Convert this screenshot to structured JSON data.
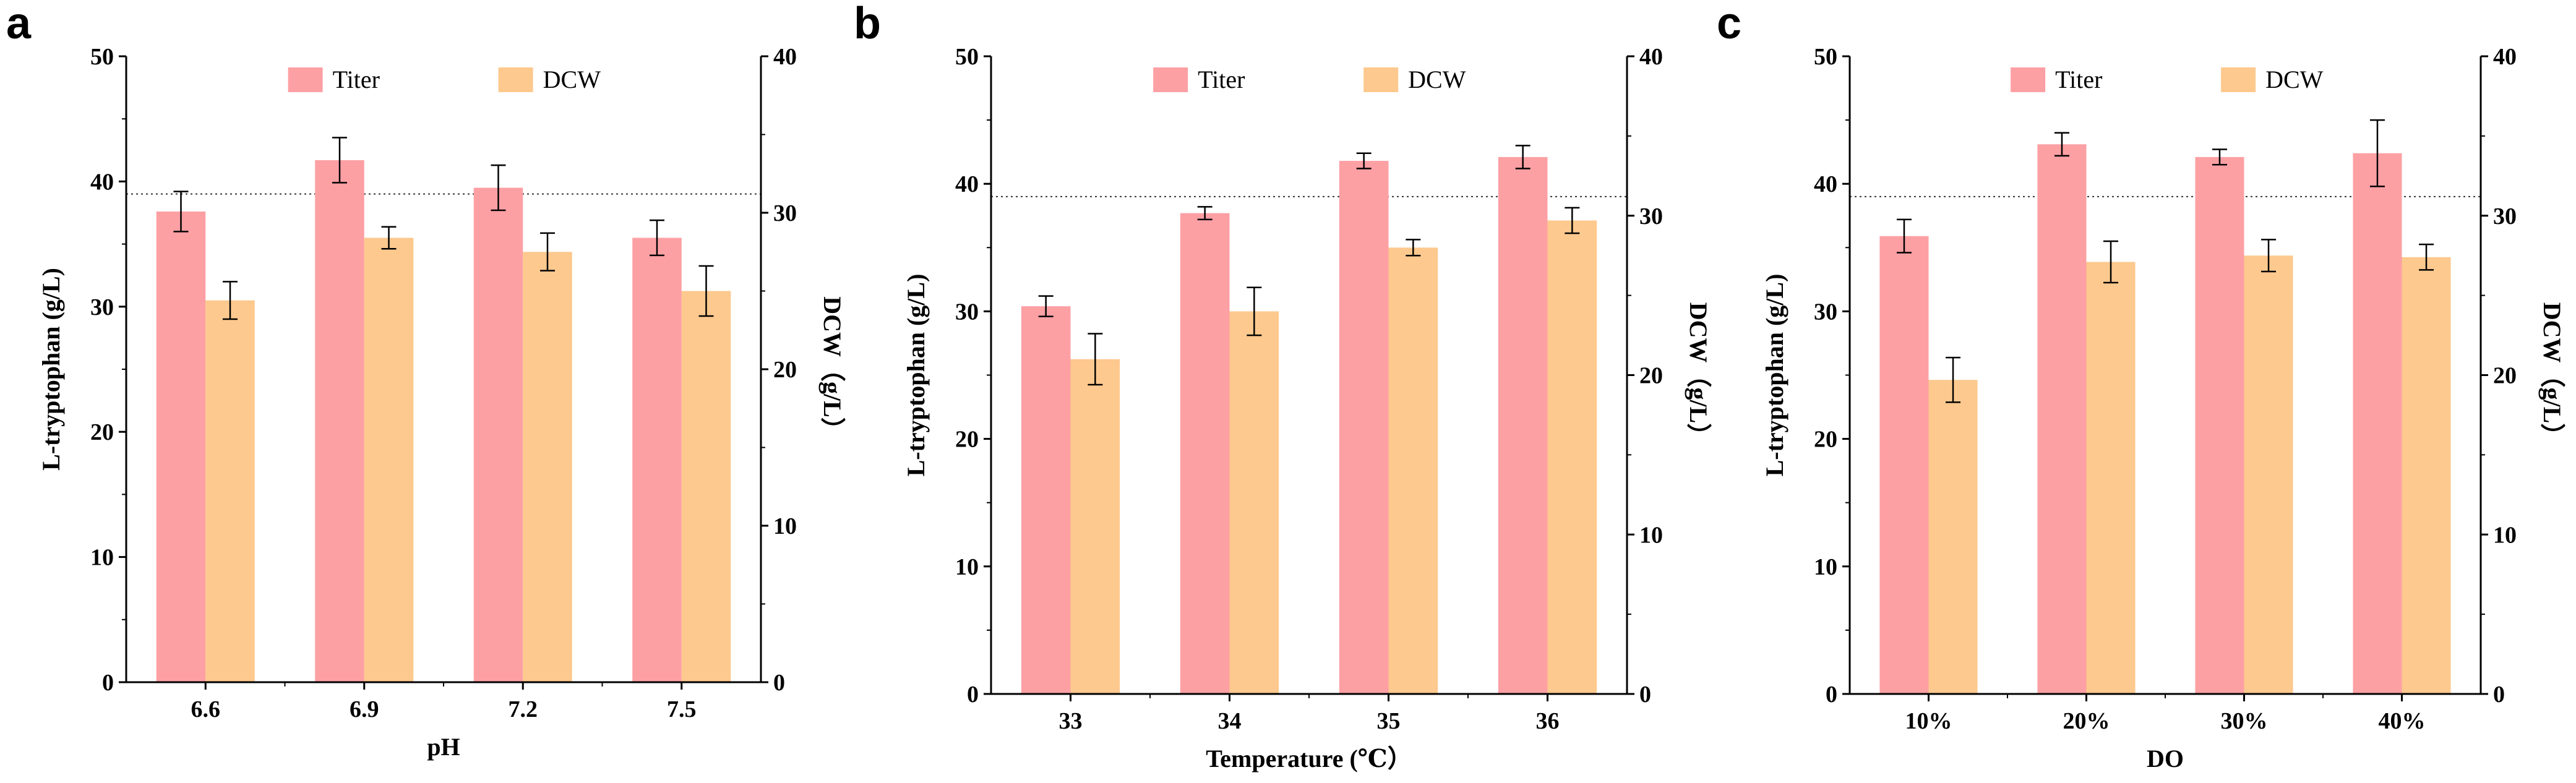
{
  "colors": {
    "titer": "#fda0a4",
    "dcw": "#fdc98e",
    "axis": "#000000"
  },
  "chart_data": [
    {
      "type": "bar",
      "panel": "a",
      "categories": [
        "6.6",
        "6.9",
        "7.2",
        "7.5"
      ],
      "xlabel": "pH",
      "ylabel": "L-tryptophan (g/L)",
      "y2label": "DCW（g/L）",
      "ylim": [
        0,
        50
      ],
      "y2lim": [
        0,
        40
      ],
      "yticks": [
        "0",
        "10",
        "20",
        "30",
        "40",
        "50"
      ],
      "y2ticks": [
        "0",
        "10",
        "20",
        "30",
        "40"
      ],
      "reference_line": 39,
      "legend": [
        "Titer",
        "DCW"
      ],
      "legend_position": "top-center",
      "series": [
        {
          "name": "Titer",
          "axis": "left",
          "values": [
            37.6,
            41.7,
            39.5,
            35.5
          ],
          "errors": [
            1.6,
            1.8,
            1.8,
            1.4
          ]
        },
        {
          "name": "DCW",
          "axis": "right",
          "values": [
            24.4,
            28.4,
            27.5,
            25.0
          ],
          "errors": [
            1.2,
            0.7,
            1.2,
            1.6
          ]
        }
      ]
    },
    {
      "type": "bar",
      "panel": "b",
      "categories": [
        "33",
        "34",
        "35",
        "36"
      ],
      "xlabel": "Temperature (℃）",
      "ylabel": "L-tryptophan (g/L)",
      "y2label": "DCW（g/L）",
      "ylim": [
        0,
        50
      ],
      "y2lim": [
        0,
        40
      ],
      "yticks": [
        "0",
        "10",
        "20",
        "30",
        "40",
        "50"
      ],
      "y2ticks": [
        "0",
        "10",
        "20",
        "30",
        "40"
      ],
      "reference_line": 39,
      "legend": [
        "Titer",
        "DCW"
      ],
      "legend_position": "top-center",
      "series": [
        {
          "name": "Titer",
          "axis": "left",
          "values": [
            30.4,
            37.7,
            41.8,
            42.1
          ],
          "errors": [
            0.8,
            0.5,
            0.6,
            0.9
          ]
        },
        {
          "name": "DCW",
          "axis": "right",
          "values": [
            21.0,
            24.0,
            28.0,
            29.7
          ],
          "errors": [
            1.6,
            1.5,
            0.5,
            0.8
          ]
        }
      ]
    },
    {
      "type": "bar",
      "panel": "c",
      "categories": [
        "10%",
        "20%",
        "30%",
        "40%"
      ],
      "xlabel": "DO",
      "ylabel": "L-tryptophan (g/L)",
      "y2label": "DCW（g/L）",
      "ylim": [
        0,
        50
      ],
      "y2lim": [
        0,
        40
      ],
      "yticks": [
        "0",
        "10",
        "20",
        "30",
        "40",
        "50"
      ],
      "y2ticks": [
        "0",
        "10",
        "20",
        "30",
        "40"
      ],
      "reference_line": 39,
      "legend": [
        "Titer",
        "DCW"
      ],
      "legend_position": "top-center",
      "series": [
        {
          "name": "Titer",
          "axis": "left",
          "values": [
            35.9,
            43.1,
            42.1,
            42.4
          ],
          "errors": [
            1.3,
            0.9,
            0.6,
            2.6
          ]
        },
        {
          "name": "DCW",
          "axis": "right",
          "values": [
            19.7,
            27.1,
            27.5,
            27.4
          ],
          "errors": [
            1.4,
            1.3,
            1.0,
            0.8
          ]
        }
      ]
    }
  ]
}
